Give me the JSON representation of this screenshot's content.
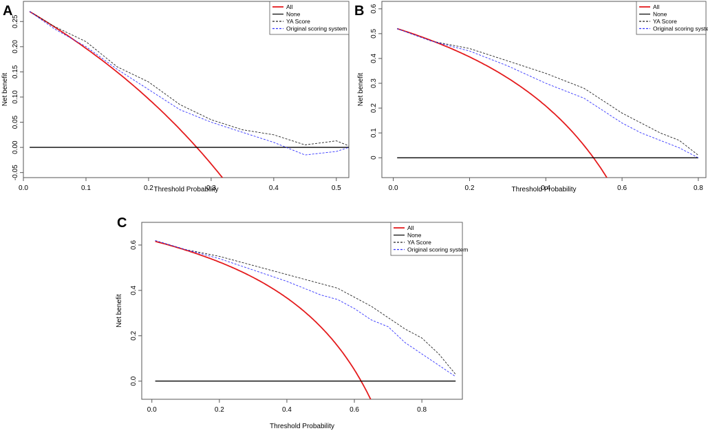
{
  "chart_data": [
    {
      "type": "line",
      "panel_label": "A",
      "xlabel": "Threshold Probability",
      "ylabel": "Net benefit",
      "xlim": [
        0.0,
        0.52
      ],
      "ylim": [
        -0.06,
        0.29
      ],
      "x_ticks": [
        "0.0",
        "0.1",
        "0.2",
        "0.3",
        "0.4",
        "0.5"
      ],
      "y_ticks": [
        "-0.05",
        "0.00",
        "0.05",
        "0.10",
        "0.15",
        "0.20",
        "0.25"
      ],
      "legend": [
        "All",
        "None",
        "YA Score",
        "Original scoring system"
      ],
      "series": [
        {
          "name": "All",
          "color": "#e41a1c",
          "style": "solid",
          "kind": "treat-all",
          "prevalence": 0.277
        },
        {
          "name": "None",
          "color": "#000000",
          "style": "solid",
          "x": [
            0.01,
            0.52
          ],
          "y": [
            0,
            0
          ]
        },
        {
          "name": "YA Score",
          "color": "#222222",
          "style": "dashed",
          "x": [
            0.01,
            0.05,
            0.1,
            0.15,
            0.2,
            0.25,
            0.3,
            0.35,
            0.4,
            0.45,
            0.5,
            0.52
          ],
          "y": [
            0.27,
            0.24,
            0.21,
            0.16,
            0.13,
            0.085,
            0.055,
            0.035,
            0.025,
            0.005,
            0.013,
            0.003
          ]
        },
        {
          "name": "Original scoring system",
          "color": "#3333ff",
          "style": "dashed",
          "x": [
            0.01,
            0.05,
            0.1,
            0.15,
            0.2,
            0.25,
            0.3,
            0.35,
            0.4,
            0.45,
            0.5,
            0.52
          ],
          "y": [
            0.27,
            0.235,
            0.2,
            0.155,
            0.115,
            0.075,
            0.05,
            0.03,
            0.01,
            -0.015,
            -0.008,
            0.0
          ]
        }
      ]
    },
    {
      "type": "line",
      "panel_label": "B",
      "xlabel": "Threshold Probability",
      "ylabel": "Net benefit",
      "xlim": [
        -0.03,
        0.82
      ],
      "ylim": [
        -0.08,
        0.63
      ],
      "x_ticks": [
        "0.0",
        "0.2",
        "0.4",
        "0.6",
        "0.8"
      ],
      "y_ticks": [
        "0",
        "0.1",
        "0.2",
        "0.3",
        "0.4",
        "0.5",
        "0.6"
      ],
      "legend": [
        "All",
        "None",
        "YA Score",
        "Original scoring system"
      ],
      "series": [
        {
          "name": "All",
          "color": "#e41a1c",
          "style": "solid",
          "kind": "treat-all",
          "prevalence": 0.525
        },
        {
          "name": "None",
          "color": "#000000",
          "style": "solid",
          "x": [
            0.01,
            0.8
          ],
          "y": [
            0,
            0
          ]
        },
        {
          "name": "YA Score",
          "color": "#222222",
          "style": "dashed",
          "x": [
            0.01,
            0.1,
            0.2,
            0.3,
            0.4,
            0.45,
            0.5,
            0.55,
            0.6,
            0.65,
            0.7,
            0.75,
            0.8
          ],
          "y": [
            0.52,
            0.47,
            0.44,
            0.39,
            0.34,
            0.31,
            0.28,
            0.23,
            0.18,
            0.14,
            0.1,
            0.07,
            0.01
          ]
        },
        {
          "name": "Original scoring system",
          "color": "#3333ff",
          "style": "dashed",
          "x": [
            0.01,
            0.1,
            0.2,
            0.3,
            0.4,
            0.45,
            0.5,
            0.55,
            0.6,
            0.65,
            0.7,
            0.75,
            0.8
          ],
          "y": [
            0.52,
            0.47,
            0.43,
            0.37,
            0.3,
            0.27,
            0.24,
            0.19,
            0.14,
            0.1,
            0.07,
            0.04,
            0.0
          ]
        }
      ]
    },
    {
      "type": "line",
      "panel_label": "C",
      "xlabel": "Threshold Probability",
      "ylabel": "Net benefit",
      "xlim": [
        -0.03,
        0.92
      ],
      "ylim": [
        -0.08,
        0.7
      ],
      "x_ticks": [
        "0.0",
        "0.2",
        "0.4",
        "0.6",
        "0.8"
      ],
      "y_ticks": [
        "0.0",
        "0.2",
        "0.4",
        "0.6"
      ],
      "legend": [
        "All",
        "None",
        "YA Score",
        "Original scoring system"
      ],
      "series": [
        {
          "name": "All",
          "color": "#e41a1c",
          "style": "solid",
          "kind": "treat-all",
          "prevalence": 0.62
        },
        {
          "name": "None",
          "color": "#000000",
          "style": "solid",
          "x": [
            0.01,
            0.9
          ],
          "y": [
            0,
            0
          ]
        },
        {
          "name": "YA Score",
          "color": "#222222",
          "style": "dashed",
          "x": [
            0.01,
            0.1,
            0.2,
            0.3,
            0.4,
            0.5,
            0.55,
            0.6,
            0.65,
            0.7,
            0.75,
            0.8,
            0.85,
            0.9
          ],
          "y": [
            0.62,
            0.58,
            0.55,
            0.51,
            0.47,
            0.43,
            0.41,
            0.37,
            0.33,
            0.28,
            0.23,
            0.19,
            0.12,
            0.03
          ]
        },
        {
          "name": "Original scoring system",
          "color": "#3333ff",
          "style": "dashed",
          "x": [
            0.01,
            0.1,
            0.2,
            0.3,
            0.4,
            0.5,
            0.55,
            0.6,
            0.65,
            0.7,
            0.75,
            0.8,
            0.85,
            0.9
          ],
          "y": [
            0.62,
            0.58,
            0.54,
            0.49,
            0.44,
            0.38,
            0.36,
            0.32,
            0.27,
            0.24,
            0.17,
            0.12,
            0.07,
            0.02
          ]
        }
      ]
    }
  ]
}
